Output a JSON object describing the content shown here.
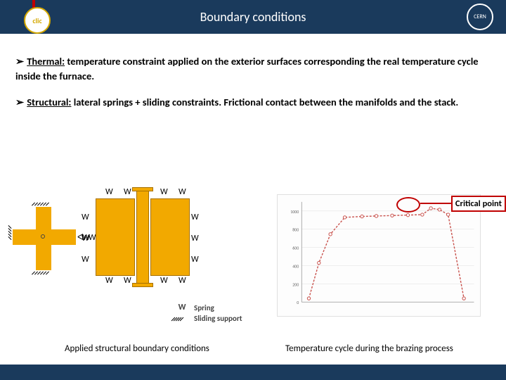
{
  "header": {
    "title": "Boundary conditions",
    "left_logo_text": "clic",
    "right_logo_text": "CERN",
    "bg_color": "#1a3a5c"
  },
  "bullets": {
    "b1_prefix": "➢ ",
    "b1_label": "Thermal:",
    "b1_text": " temperature constraint applied on the exterior surfaces corresponding the real temperature cycle inside the furnace.",
    "b2_prefix": "➢ ",
    "b2_label": "Structural:",
    "b2_text": " lateral springs + sliding constraints. Frictional contact between the manifolds and the stack."
  },
  "legend": {
    "spring": "Spring",
    "sliding": "Sliding support"
  },
  "critical_label": "Critical point",
  "captions": {
    "left": "Applied structural boundary conditions",
    "right": "Temperature cycle during the brazing process"
  },
  "chart": {
    "type": "line",
    "line_color": "#c8504b",
    "marker": "circle",
    "grid_color": "#e4e4e4",
    "background_color": "#fdfdfd",
    "xlim": [
      0,
      12
    ],
    "ylim": [
      0,
      1100
    ],
    "ytick_step": 200,
    "points_x": [
      0.5,
      1.2,
      2.0,
      3.0,
      4.2,
      5.2,
      6.3,
      7.4,
      8.4,
      9.0,
      9.6,
      10.2,
      11.3
    ],
    "points_y": [
      40,
      430,
      745,
      930,
      940,
      945,
      950,
      955,
      960,
      1030,
      1015,
      960,
      40
    ]
  },
  "colors": {
    "block": "#f2a900",
    "block_border": "#a67000",
    "callout": "#c00000"
  }
}
